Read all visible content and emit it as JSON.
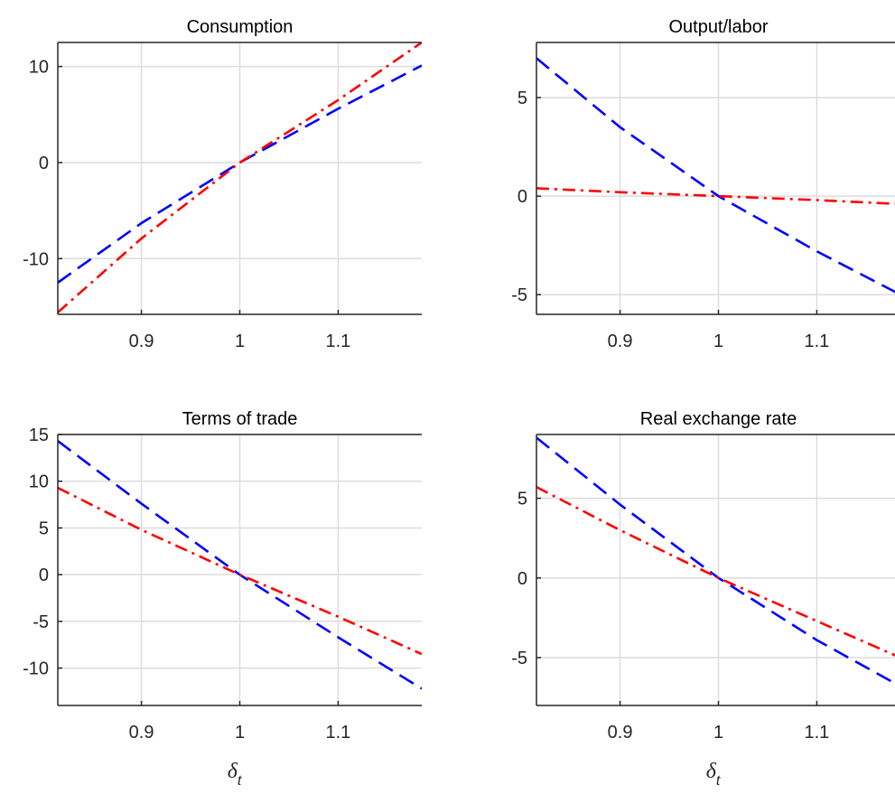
{
  "chart_data": [
    {
      "type": "line",
      "title": "Consumption",
      "xlabel": "",
      "xlim": [
        0.815,
        1.185
      ],
      "ylim": [
        -15.8,
        12.5
      ],
      "xticks": [
        0.9,
        1,
        1.1
      ],
      "xtick_labels": [
        "0.9",
        "1",
        "1.1"
      ],
      "yticks": [
        -10,
        0,
        10
      ],
      "ytick_labels": [
        "-10",
        "0",
        "10"
      ],
      "grid": true,
      "series": [
        {
          "color": "#0000ff",
          "style": "dashed",
          "x": [
            0.815,
            0.9,
            1.0,
            1.1,
            1.185
          ],
          "y": [
            -12.5,
            -6.3,
            0,
            5.6,
            10.1
          ]
        },
        {
          "color": "#ff0000",
          "style": "dashdot",
          "x": [
            0.815,
            0.9,
            1.0,
            1.1,
            1.185
          ],
          "y": [
            -15.6,
            -7.9,
            0,
            6.5,
            12.5
          ]
        }
      ]
    },
    {
      "type": "line",
      "title": "Output/labor",
      "xlabel": "",
      "xlim": [
        0.815,
        1.185
      ],
      "ylim": [
        -6,
        7.8
      ],
      "xticks": [
        0.9,
        1,
        1.1
      ],
      "xtick_labels": [
        "0.9",
        "1",
        "1.1"
      ],
      "yticks": [
        -5,
        0,
        5
      ],
      "ytick_labels": [
        "-5",
        "0",
        "5"
      ],
      "grid": true,
      "series": [
        {
          "color": "#0000ff",
          "style": "dashed",
          "x": [
            0.815,
            0.9,
            1.0,
            1.1,
            1.185
          ],
          "y": [
            7.0,
            3.5,
            0,
            -2.8,
            -5.0
          ]
        },
        {
          "color": "#ff0000",
          "style": "dashdot",
          "x": [
            0.815,
            0.9,
            1.0,
            1.1,
            1.185
          ],
          "y": [
            0.4,
            0.2,
            0,
            -0.2,
            -0.4
          ]
        }
      ]
    },
    {
      "type": "line",
      "title": "Terms of trade",
      "xlabel": "δt",
      "xlim": [
        0.815,
        1.185
      ],
      "ylim": [
        -14,
        15
      ],
      "xticks": [
        0.9,
        1,
        1.1
      ],
      "xtick_labels": [
        "0.9",
        "1",
        "1.1"
      ],
      "yticks": [
        -10,
        -5,
        0,
        5,
        10,
        15
      ],
      "ytick_labels": [
        "-10",
        "-5",
        "0",
        "5",
        "10",
        "15"
      ],
      "grid": true,
      "series": [
        {
          "color": "#0000ff",
          "style": "dashed",
          "x": [
            0.815,
            0.9,
            1.0,
            1.1,
            1.185
          ],
          "y": [
            14.3,
            7.6,
            0,
            -6.7,
            -12.2
          ]
        },
        {
          "color": "#ff0000",
          "style": "dashdot",
          "x": [
            0.815,
            0.9,
            1.0,
            1.1,
            1.185
          ],
          "y": [
            9.3,
            4.8,
            0,
            -4.5,
            -8.5
          ]
        }
      ]
    },
    {
      "type": "line",
      "title": "Real exchange rate",
      "xlabel": "δt",
      "xlim": [
        0.815,
        1.185
      ],
      "ylim": [
        -8,
        9
      ],
      "xticks": [
        0.9,
        1,
        1.1
      ],
      "xtick_labels": [
        "0.9",
        "1",
        "1.1"
      ],
      "yticks": [
        -5,
        0,
        5
      ],
      "ytick_labels": [
        "-5",
        "0",
        "5"
      ],
      "grid": true,
      "series": [
        {
          "color": "#0000ff",
          "style": "dashed",
          "x": [
            0.815,
            0.9,
            1.0,
            1.1,
            1.185
          ],
          "y": [
            8.8,
            4.6,
            0,
            -3.9,
            -6.8
          ]
        },
        {
          "color": "#ff0000",
          "style": "dashdot",
          "x": [
            0.815,
            0.9,
            1.0,
            1.1,
            1.185
          ],
          "y": [
            5.7,
            3.0,
            0,
            -2.7,
            -5.0
          ]
        }
      ]
    }
  ]
}
